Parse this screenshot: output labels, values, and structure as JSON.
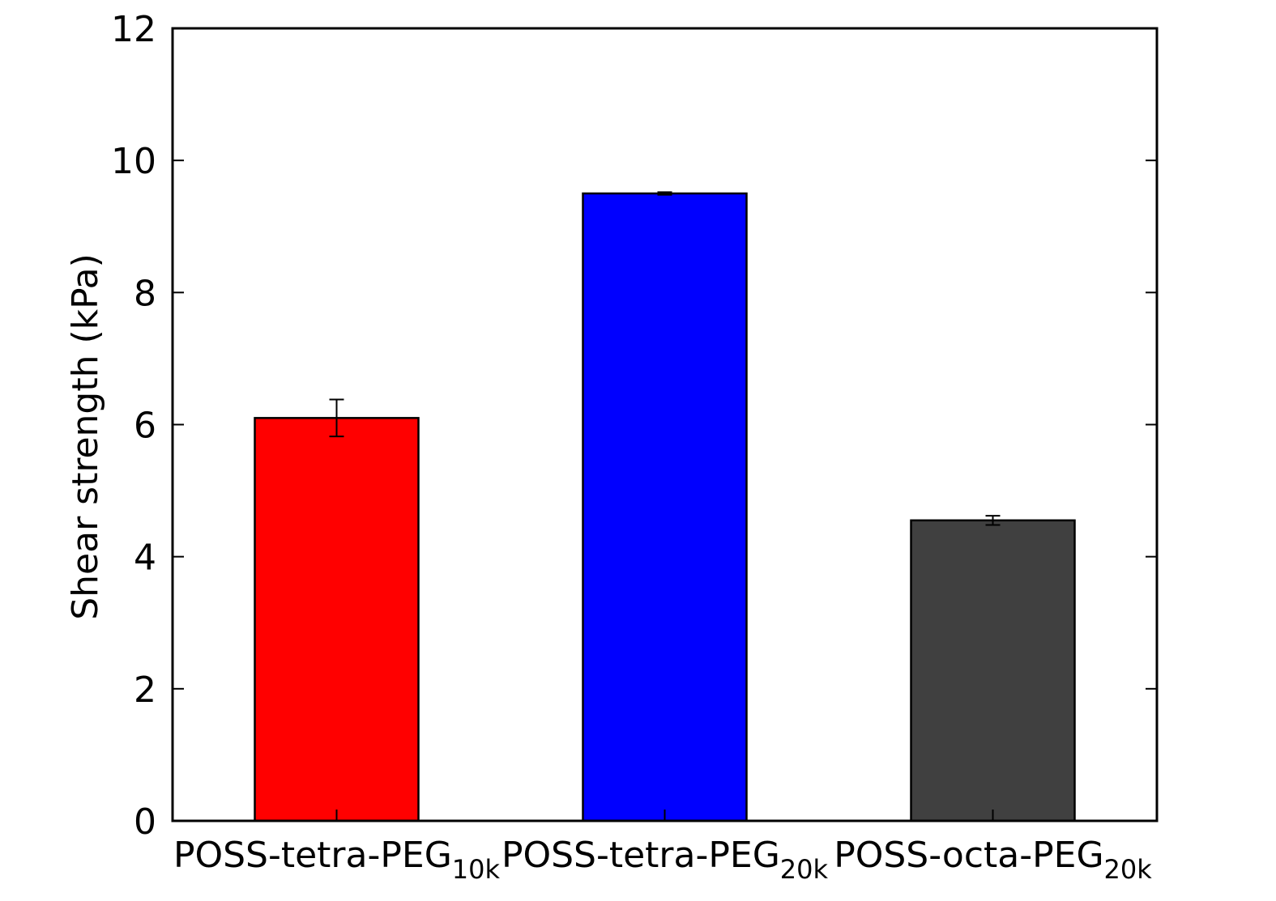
{
  "chart_data": {
    "type": "bar",
    "title": "",
    "xlabel": "",
    "ylabel": "Shear strength (kPa)",
    "ylim": [
      0,
      12
    ],
    "yticks": [
      0,
      2,
      4,
      6,
      8,
      10,
      12
    ],
    "grid": false,
    "legend": "none",
    "categories": [
      {
        "base": "POSS-tetra-PEG",
        "sub": "10k"
      },
      {
        "base": "POSS-tetra-PEG",
        "sub": "20k"
      },
      {
        "base": "POSS-octa-PEG",
        "sub": "20k"
      }
    ],
    "values": [
      6.1,
      9.5,
      4.55
    ],
    "errors": [
      0.28,
      0.02,
      0.07
    ],
    "colors": [
      "#ff0000",
      "#0000ff",
      "#404040"
    ]
  }
}
